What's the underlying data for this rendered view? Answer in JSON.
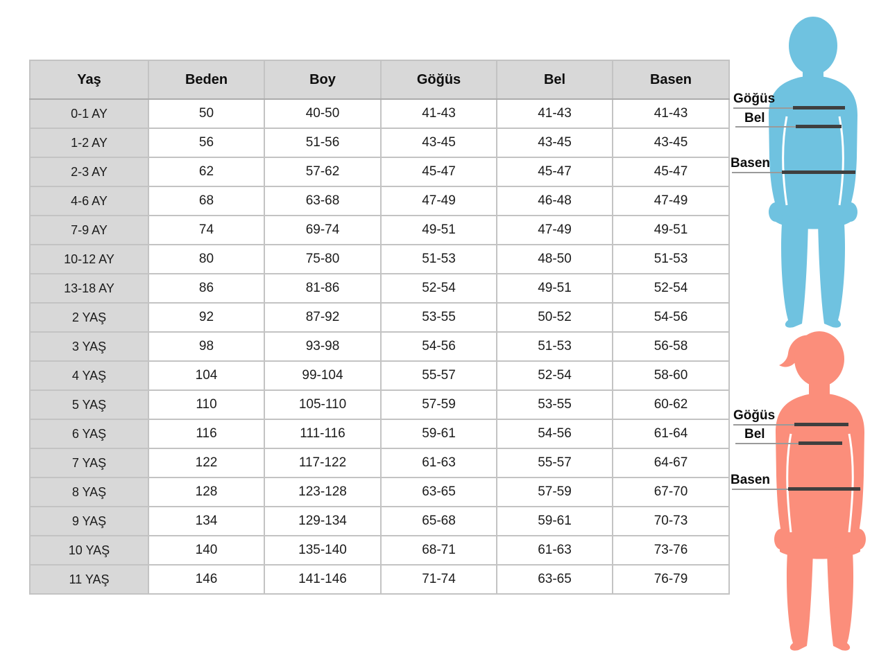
{
  "table": {
    "headers": [
      "Yaş",
      "Beden",
      "Boy",
      "Göğüs",
      "Bel",
      "Basen"
    ],
    "rows": [
      [
        "0-1 AY",
        "50",
        "40-50",
        "41-43",
        "41-43",
        "41-43"
      ],
      [
        "1-2 AY",
        "56",
        "51-56",
        "43-45",
        "43-45",
        "43-45"
      ],
      [
        "2-3 AY",
        "62",
        "57-62",
        "45-47",
        "45-47",
        "45-47"
      ],
      [
        "4-6 AY",
        "68",
        "63-68",
        "47-49",
        "46-48",
        "47-49"
      ],
      [
        "7-9 AY",
        "74",
        "69-74",
        "49-51",
        "47-49",
        "49-51"
      ],
      [
        "10-12 AY",
        "80",
        "75-80",
        "51-53",
        "48-50",
        "51-53"
      ],
      [
        "13-18 AY",
        "86",
        "81-86",
        "52-54",
        "49-51",
        "52-54"
      ],
      [
        "2 YAŞ",
        "92",
        "87-92",
        "53-55",
        "50-52",
        "54-56"
      ],
      [
        "3 YAŞ",
        "98",
        "93-98",
        "54-56",
        "51-53",
        "56-58"
      ],
      [
        "4 YAŞ",
        "104",
        "99-104",
        "55-57",
        "52-54",
        "58-60"
      ],
      [
        "5 YAŞ",
        "110",
        "105-110",
        "57-59",
        "53-55",
        "60-62"
      ],
      [
        "6 YAŞ",
        "116",
        "111-116",
        "59-61",
        "54-56",
        "61-64"
      ],
      [
        "7 YAŞ",
        "122",
        "117-122",
        "61-63",
        "55-57",
        "64-67"
      ],
      [
        "8 YAŞ",
        "128",
        "123-128",
        "63-65",
        "57-59",
        "67-70"
      ],
      [
        "9 YAŞ",
        "134",
        "129-134",
        "65-68",
        "59-61",
        "70-73"
      ],
      [
        "10 YAŞ",
        "140",
        "135-140",
        "68-71",
        "61-63",
        "73-76"
      ],
      [
        "11 YAŞ",
        "146",
        "141-146",
        "71-74",
        "63-65",
        "76-79"
      ]
    ]
  },
  "measurements": {
    "chest": "Göğüs",
    "waist": "Bel",
    "hips": "Basen"
  },
  "figures": {
    "top": {
      "type": "boy-silhouette",
      "color": "#6FC2E0"
    },
    "bottom": {
      "type": "girl-silhouette",
      "color": "#FB8E7B"
    }
  },
  "colors": {
    "header_bg": "#D8D8D8",
    "row_label_bg": "#D8D8D8",
    "border": "#C3C3C3",
    "text": "#1B1B1B",
    "measure_line_thick": "#3F3F3F",
    "measure_line_thin": "#9A9A9A"
  }
}
